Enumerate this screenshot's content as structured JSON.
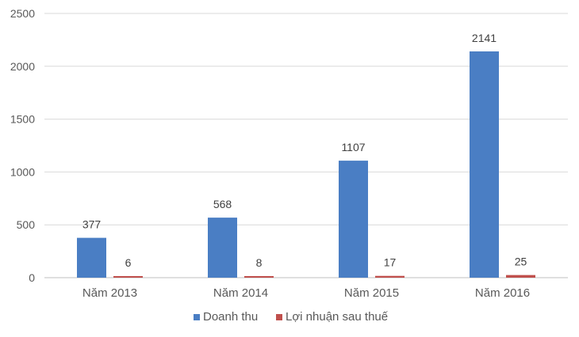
{
  "chart_data": {
    "type": "bar",
    "title": "",
    "xlabel": "",
    "ylabel": "",
    "categories": [
      "Năm 2013",
      "Năm 2014",
      "Năm 2015",
      "Năm 2016"
    ],
    "series": [
      {
        "name": "Doanh thu",
        "color": "#4a7ec4",
        "values": [
          377,
          568,
          1107,
          2141
        ]
      },
      {
        "name": "Lợi nhuận sau thuế",
        "color": "#c0504d",
        "values": [
          6,
          8,
          17,
          25
        ]
      }
    ],
    "ylim": [
      0,
      2500
    ],
    "yticks": [
      0,
      500,
      1000,
      1500,
      2000,
      2500
    ],
    "grid": true,
    "legend": "bottom"
  }
}
